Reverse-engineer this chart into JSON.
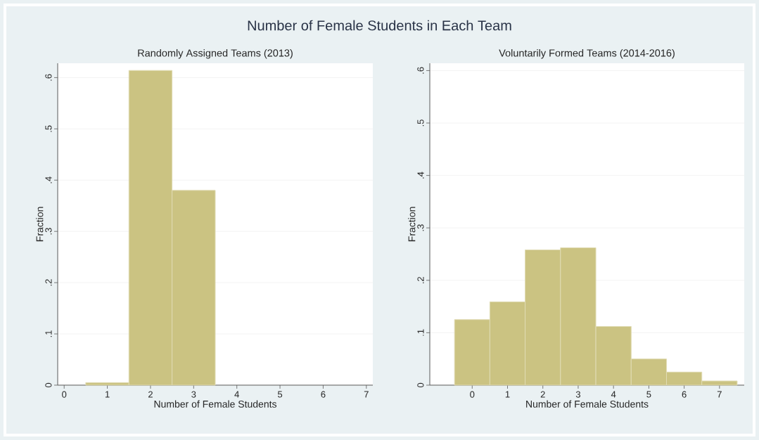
{
  "chart_data": [
    {
      "type": "histogram",
      "title": "Number of Female Students in Each Team",
      "subtitle": "Randomly Assigned Teams (2013)",
      "xlabel": "Number of Female Students",
      "ylabel": "Fraction",
      "bins": [
        0.5,
        1.5,
        2.5,
        3.5
      ],
      "values": [
        0.005,
        0.614,
        0.38
      ],
      "color": "#cbc382",
      "xlim": [
        -0.15,
        7.15
      ],
      "ylim": [
        0,
        0.628
      ],
      "xticks": [
        0,
        1,
        2,
        3,
        4,
        5,
        6,
        7
      ],
      "yticks": [
        0,
        {
          "value": 0.1,
          "label": ".1"
        },
        {
          "value": 0.2,
          "label": ".2"
        },
        {
          "value": 0.3,
          "label": ".3"
        },
        {
          "value": 0.4,
          "label": ".4"
        },
        {
          "value": 0.5,
          "label": ".5"
        },
        {
          "value": 0.6,
          "label": ".6"
        }
      ],
      "grid": "y"
    },
    {
      "type": "histogram",
      "title": "Voluntarily Formed Teams (2014-2016)",
      "xlabel": "Number of Female Students",
      "ylabel": "Fraction",
      "bins": [
        -0.5,
        0.5,
        1.5,
        2.5,
        3.5,
        4.5,
        5.5,
        6.5,
        7.5
      ],
      "values": [
        0.125,
        0.159,
        0.258,
        0.262,
        0.112,
        0.05,
        0.025,
        0.008
      ],
      "color": "#cbc382",
      "xlim": [
        -1.2,
        7.7
      ],
      "ylim": [
        0,
        0.614
      ],
      "xticks": [
        0,
        1,
        2,
        3,
        4,
        5,
        6,
        7
      ],
      "yticks": [
        0,
        {
          "value": 0.1,
          "label": ".1"
        },
        {
          "value": 0.2,
          "label": ".2"
        },
        {
          "value": 0.3,
          "label": ".3"
        },
        {
          "value": 0.4,
          "label": ".4"
        },
        {
          "value": 0.5,
          "label": ".5"
        },
        {
          "value": 0.6,
          "label": ".6"
        }
      ],
      "grid": "y"
    }
  ]
}
